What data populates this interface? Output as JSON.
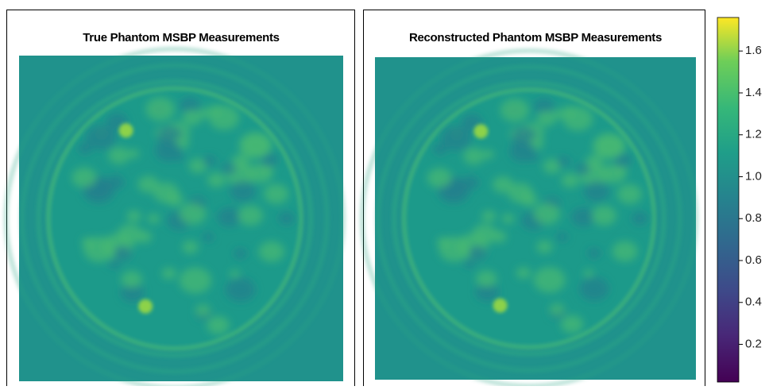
{
  "chart_data": [
    {
      "type": "image",
      "title": "True Phantom MSBP Measurements"
    },
    {
      "type": "image",
      "title": "Reconstructed Phantom MSBP Measurements"
    },
    {
      "type": "colorbar",
      "colormap": "viridis",
      "ylim": [
        0.02,
        1.76
      ],
      "yticks": [
        0.2,
        0.4,
        0.6,
        0.8,
        {
          "value": 1,
          "label": "1.0"
        },
        1.2,
        1.4,
        1.6
      ]
    }
  ]
}
